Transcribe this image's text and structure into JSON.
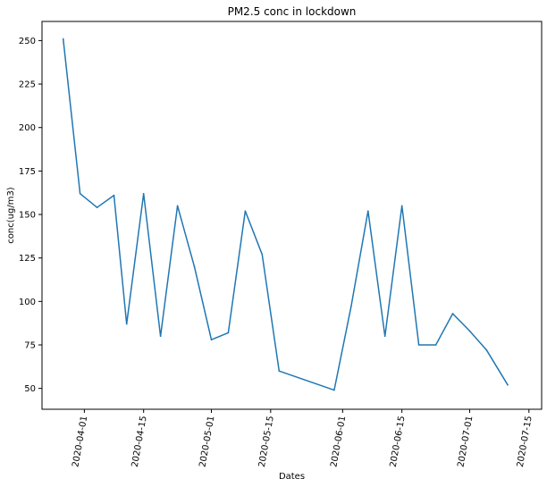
{
  "chart_data": {
    "type": "line",
    "title": "PM2.5 conc in lockdown",
    "xlabel": "Dates",
    "ylabel": "conc(ug/m3)",
    "x_ticks": [
      "2020-04-01",
      "2020-04-15",
      "2020-05-01",
      "2020-05-15",
      "2020-06-01",
      "2020-06-15",
      "2020-07-01",
      "2020-07-15"
    ],
    "y_ticks": [
      50,
      75,
      100,
      125,
      150,
      175,
      200,
      225,
      250
    ],
    "xlim": [
      "2020-03-22",
      "2020-07-18"
    ],
    "ylim": [
      38,
      261
    ],
    "grid": false,
    "series": [
      {
        "color": "#1f77b4",
        "points": [
          {
            "x": "2020-03-27",
            "y": 251
          },
          {
            "x": "2020-03-31",
            "y": 162
          },
          {
            "x": "2020-04-04",
            "y": 154
          },
          {
            "x": "2020-04-08",
            "y": 161
          },
          {
            "x": "2020-04-11",
            "y": 87
          },
          {
            "x": "2020-04-15",
            "y": 162
          },
          {
            "x": "2020-04-19",
            "y": 80
          },
          {
            "x": "2020-04-23",
            "y": 155
          },
          {
            "x": "2020-04-27",
            "y": 120
          },
          {
            "x": "2020-05-01",
            "y": 78
          },
          {
            "x": "2020-05-05",
            "y": 82
          },
          {
            "x": "2020-05-09",
            "y": 152
          },
          {
            "x": "2020-05-13",
            "y": 127
          },
          {
            "x": "2020-05-17",
            "y": 60
          },
          {
            "x": "2020-05-30",
            "y": 49
          },
          {
            "x": "2020-06-03",
            "y": 97
          },
          {
            "x": "2020-06-07",
            "y": 152
          },
          {
            "x": "2020-06-11",
            "y": 80
          },
          {
            "x": "2020-06-15",
            "y": 155
          },
          {
            "x": "2020-06-19",
            "y": 75
          },
          {
            "x": "2020-06-23",
            "y": 75
          },
          {
            "x": "2020-06-27",
            "y": 93
          },
          {
            "x": "2020-07-01",
            "y": 83
          },
          {
            "x": "2020-07-05",
            "y": 72
          },
          {
            "x": "2020-07-10",
            "y": 52
          }
        ]
      }
    ]
  }
}
